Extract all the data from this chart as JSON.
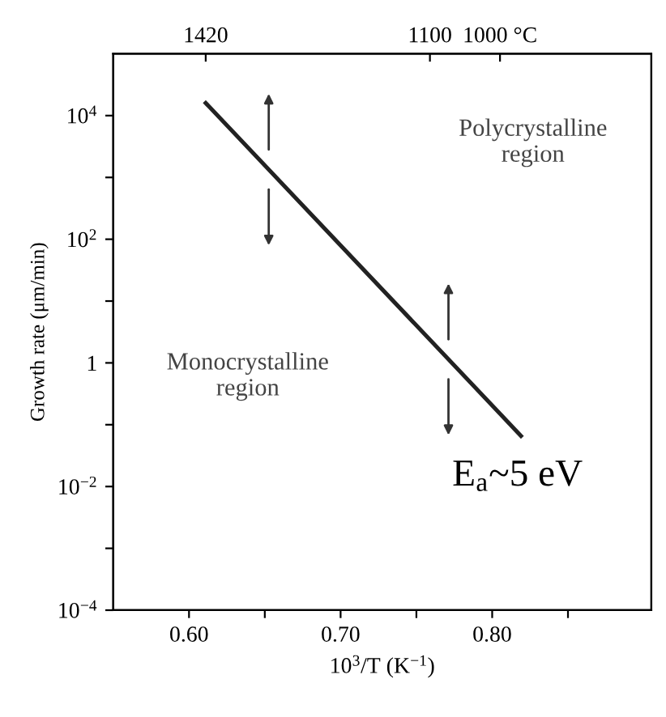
{
  "chart_data": {
    "type": "line",
    "xlabel": "10$^{3}$/T (K$^{−1}$)",
    "ylabel": "Growth rate (μm/min)",
    "series": [
      {
        "color": "#222222",
        "x": [
          0.611,
          0.819
        ],
        "values": [
          16000,
          0.066
        ]
      }
    ],
    "xlim": [
      0.55,
      0.905
    ],
    "xticks": [
      {
        "value": 0.6,
        "label": "0.60"
      },
      {
        "value": 0.65,
        "label": null
      },
      {
        "value": 0.7,
        "label": "0.70"
      },
      {
        "value": 0.75,
        "label": null
      },
      {
        "value": 0.8,
        "label": "0.80"
      },
      {
        "value": 0.85,
        "label": null
      }
    ],
    "x2lim": [
      1552,
      784
    ],
    "x2ticks": [
      1420,
      1100,
      {
        "value": 1000,
        "label": "1000 °C"
      }
    ],
    "log": "y",
    "ylim": [
      0.0001,
      100000
    ],
    "yticks": [
      {
        "value": 0.0001,
        "label": "10$^{−4}$"
      },
      {
        "value": 0.001,
        "label": null
      },
      {
        "value": 0.01,
        "label": "10$^{−2}$"
      },
      {
        "value": 0.1,
        "label": null
      },
      1,
      {
        "value": 10,
        "label": null
      },
      {
        "value": 100,
        "label": "10$^{2}$"
      },
      {
        "value": 1000,
        "label": null
      },
      {
        "value": 10000,
        "label": "10$^{4}$"
      }
    ],
    "grid": false,
    "legend": false,
    "marker": "none",
    "line_style": "solid",
    "annotations": [
      "Polycrystalline\nregion",
      "Monocrystalline\nregion",
      "E$_{a}$~5 eV"
    ]
  }
}
